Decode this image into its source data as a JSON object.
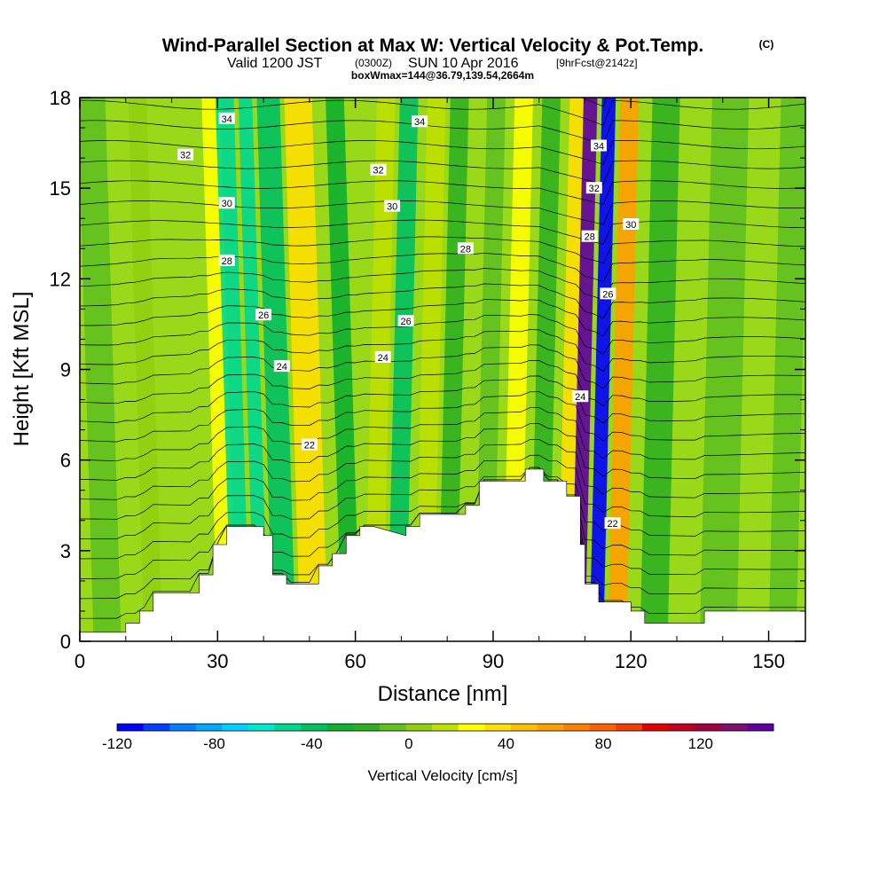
{
  "title": {
    "main": "Wind-Parallel Section at Max W: Vertical Velocity & Pot.Temp.",
    "copyright": "(C)",
    "valid_prefix": "Valid 1200 JST",
    "valid_utc": "(0300Z)",
    "valid_date": "SUN 10 Apr 2016",
    "forecast": "[9hrFcst@2142z]",
    "box_info": "boxWmax=144@36.79,139.54,2664m"
  },
  "colors": {
    "terrain": "#ffffff",
    "isentrope": "#000000",
    "frame": "#000000",
    "colorbar": [
      "#0000ff",
      "#0040ff",
      "#0080ff",
      "#00a8ff",
      "#00d0ff",
      "#00e8d0",
      "#00d890",
      "#00c060",
      "#10b030",
      "#30b020",
      "#60c020",
      "#90d010",
      "#c0e000",
      "#ffff00",
      "#ffe000",
      "#ffc000",
      "#ffa000",
      "#ff8000",
      "#ff6000",
      "#f04000",
      "#e00000",
      "#c00020",
      "#a00040",
      "#80106f",
      "#6000a0"
    ]
  },
  "chart_data": {
    "type": "heatmap",
    "title": "Wind-Parallel Section at Max W: Vertical Velocity & Pot.Temp.",
    "xlabel": "Distance [nm]",
    "ylabel": "Height [Kft MSL]",
    "xlim": [
      0,
      158
    ],
    "ylim": [
      0,
      18
    ],
    "xticks": [
      "0",
      "30",
      "60",
      "90",
      "120",
      "150"
    ],
    "yticks": [
      "0",
      "3",
      "6",
      "9",
      "12",
      "15",
      "18"
    ],
    "colorbar": {
      "label": "Vertical Velocity [cm/s]",
      "range": [
        -120,
        150
      ],
      "ticks": [
        "-120",
        "-80",
        "-40",
        "0",
        "40",
        "80",
        "120"
      ]
    },
    "terrain_profile": {
      "x": [
        0,
        10,
        10,
        13,
        13,
        16,
        16,
        20,
        20,
        26,
        26,
        29,
        29,
        32,
        32,
        36,
        36,
        40,
        40,
        42,
        42,
        45,
        45,
        52,
        52,
        55,
        55,
        58,
        58,
        61,
        61,
        64,
        64,
        71,
        71,
        74,
        74,
        84,
        84,
        87,
        87,
        97,
        97,
        101,
        101,
        106,
        106,
        109,
        109,
        110,
        110,
        113,
        113,
        116,
        116,
        120,
        120,
        123,
        123,
        126,
        126,
        136,
        136,
        150,
        150,
        158
      ],
      "y": [
        0.3,
        0.3,
        0.6,
        0.6,
        1.0,
        1.0,
        1.6,
        1.6,
        1.6,
        1.6,
        2.2,
        2.2,
        3.2,
        3.2,
        3.8,
        3.8,
        3.8,
        3.8,
        3.5,
        3.5,
        2.2,
        2.2,
        1.9,
        1.9,
        2.5,
        2.5,
        2.9,
        2.9,
        3.5,
        3.5,
        3.8,
        3.8,
        3.8,
        3.5,
        3.8,
        3.8,
        4.2,
        4.2,
        4.5,
        4.5,
        5.3,
        5.3,
        5.7,
        5.7,
        5.3,
        5.3,
        4.8,
        4.8,
        3.2,
        3.2,
        1.9,
        1.9,
        1.3,
        1.3,
        1.3,
        1.3,
        1.0,
        1.0,
        0.6,
        0.6,
        0.6,
        0.6,
        1.0,
        1.0,
        1.0,
        1.0
      ]
    },
    "vertical_velocity_bands": [
      {
        "x": 3,
        "w": 6,
        "w_cm_s": -10
      },
      {
        "x": 14,
        "w": 4,
        "w_cm_s": 5
      },
      {
        "x": 30,
        "w": 4,
        "w_cm_s": 30
      },
      {
        "x": 33,
        "w": 4,
        "w_cm_s": -45
      },
      {
        "x": 38,
        "w": 3,
        "w_cm_s": -50
      },
      {
        "x": 42,
        "w": 5,
        "w_cm_s": -40
      },
      {
        "x": 48,
        "w": 6,
        "w_cm_s": 40
      },
      {
        "x": 57,
        "w": 4,
        "w_cm_s": -25
      },
      {
        "x": 62,
        "w": 4,
        "w_cm_s": 20
      },
      {
        "x": 67,
        "w": 4,
        "w_cm_s": -35
      },
      {
        "x": 73,
        "w": 4,
        "w_cm_s": 10
      },
      {
        "x": 78,
        "w": 4,
        "w_cm_s": -20
      },
      {
        "x": 86,
        "w": 4,
        "w_cm_s": -10
      },
      {
        "x": 92,
        "w": 4,
        "w_cm_s": 25
      },
      {
        "x": 98,
        "w": 4,
        "w_cm_s": -15
      },
      {
        "x": 104,
        "w": 3,
        "w_cm_s": 40
      },
      {
        "x": 107,
        "w": 3,
        "w_cm_s": 140
      },
      {
        "x": 111,
        "w": 3,
        "w_cm_s": -110
      },
      {
        "x": 115,
        "w": 4,
        "w_cm_s": 60
      },
      {
        "x": 122,
        "w": 6,
        "w_cm_s": -15
      },
      {
        "x": 135,
        "w": 8,
        "w_cm_s": -10
      },
      {
        "x": 150,
        "w": 6,
        "w_cm_s": -5
      }
    ],
    "isentrope_labels": [
      {
        "text": "34",
        "x": 32,
        "y": 17.3
      },
      {
        "text": "34",
        "x": 74,
        "y": 17.2
      },
      {
        "text": "34",
        "x": 113,
        "y": 16.4
      },
      {
        "text": "32",
        "x": 23,
        "y": 16.1
      },
      {
        "text": "32",
        "x": 65,
        "y": 15.6
      },
      {
        "text": "32",
        "x": 112,
        "y": 15.0
      },
      {
        "text": "30",
        "x": 32,
        "y": 14.5
      },
      {
        "text": "30",
        "x": 68,
        "y": 14.4
      },
      {
        "text": "30",
        "x": 120,
        "y": 13.8
      },
      {
        "text": "28",
        "x": 32,
        "y": 12.6
      },
      {
        "text": "28",
        "x": 84,
        "y": 13.0
      },
      {
        "text": "28",
        "x": 111,
        "y": 13.4
      },
      {
        "text": "26",
        "x": 40,
        "y": 10.8
      },
      {
        "text": "26",
        "x": 71,
        "y": 10.6
      },
      {
        "text": "26",
        "x": 115,
        "y": 11.5
      },
      {
        "text": "24",
        "x": 44,
        "y": 9.1
      },
      {
        "text": "24",
        "x": 66,
        "y": 9.4
      },
      {
        "text": "24",
        "x": 109,
        "y": 8.1
      },
      {
        "text": "22",
        "x": 50,
        "y": 6.5
      },
      {
        "text": "22",
        "x": 116,
        "y": 3.9
      }
    ]
  }
}
